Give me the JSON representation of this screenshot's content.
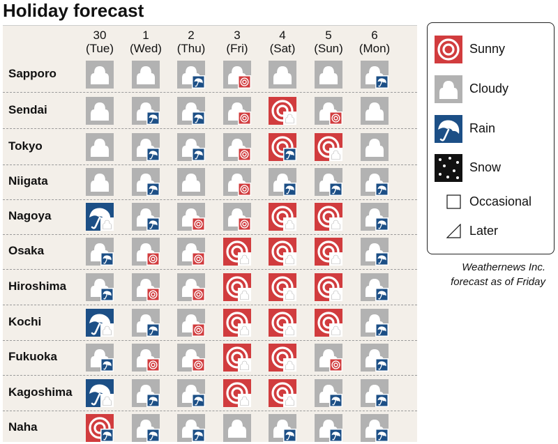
{
  "title": "Holiday forecast",
  "colors": {
    "sunny": "#d13c3e",
    "cloudy": "#b2b2b2",
    "rain": "#1c4f86",
    "snow": "#111111",
    "panel": "#f3efe9"
  },
  "days": [
    {
      "num": "30",
      "dow": "(Tue)"
    },
    {
      "num": "1",
      "dow": "(Wed)"
    },
    {
      "num": "2",
      "dow": "(Thu)"
    },
    {
      "num": "3",
      "dow": "(Fri)"
    },
    {
      "num": "4",
      "dow": "(Sat)"
    },
    {
      "num": "5",
      "dow": "(Sun)"
    },
    {
      "num": "6",
      "dow": "(Mon)"
    }
  ],
  "cities": [
    {
      "name": "Sapporo",
      "forecast": [
        "C",
        "C",
        "C/r",
        "C/s",
        "C",
        "C",
        "C/r"
      ]
    },
    {
      "name": "Sendai",
      "forecast": [
        "C",
        "C/r",
        "C/r",
        "C/s",
        "S/c",
        "C/s",
        "C"
      ]
    },
    {
      "name": "Tokyo",
      "forecast": [
        "C",
        "C/r",
        "C/r",
        "C/s",
        "S/r",
        "S/c",
        "C"
      ]
    },
    {
      "name": "Niigata",
      "forecast": [
        "C",
        "C/r",
        "C",
        "C/s",
        "C/r",
        "C/r",
        "C/r"
      ]
    },
    {
      "name": "Nagoya",
      "forecast": [
        "R/c",
        "C/r",
        "C/s",
        "C/s",
        "S/c",
        "S/c",
        "C/r"
      ]
    },
    {
      "name": "Osaka",
      "forecast": [
        "C/r",
        "C/s",
        "C/s",
        "S/c",
        "S/c",
        "S/c",
        "C/r"
      ]
    },
    {
      "name": "Hiroshima",
      "forecast": [
        "C/r",
        "C/s",
        "C/s",
        "S/c",
        "S/c",
        "S/c",
        "C/r"
      ]
    },
    {
      "name": "Kochi",
      "forecast": [
        "R/c",
        "C/r",
        "C/s",
        "S/c",
        "S/c",
        "S/c",
        "C/r"
      ]
    },
    {
      "name": "Fukuoka",
      "forecast": [
        "C/r",
        "C/s",
        "C/s",
        "S/c",
        "S/c",
        "C/s",
        "C/r"
      ]
    },
    {
      "name": "Kagoshima",
      "forecast": [
        "R/c",
        "C/r",
        "C/r",
        "S/c",
        "S/c",
        "C/r",
        "C/r"
      ]
    },
    {
      "name": "Naha",
      "forecast": [
        "S/r",
        "C/r",
        "C/r",
        "C",
        "C/r",
        "C/r",
        "C/r"
      ]
    }
  ],
  "legend": {
    "sunny": "Sunny",
    "cloudy": "Cloudy",
    "rain": "Rain",
    "snow": "Snow",
    "occasional": "Occasional",
    "later": "Later"
  },
  "credit_line1": "Weathernews Inc.",
  "credit_line2": "forecast as of Friday"
}
